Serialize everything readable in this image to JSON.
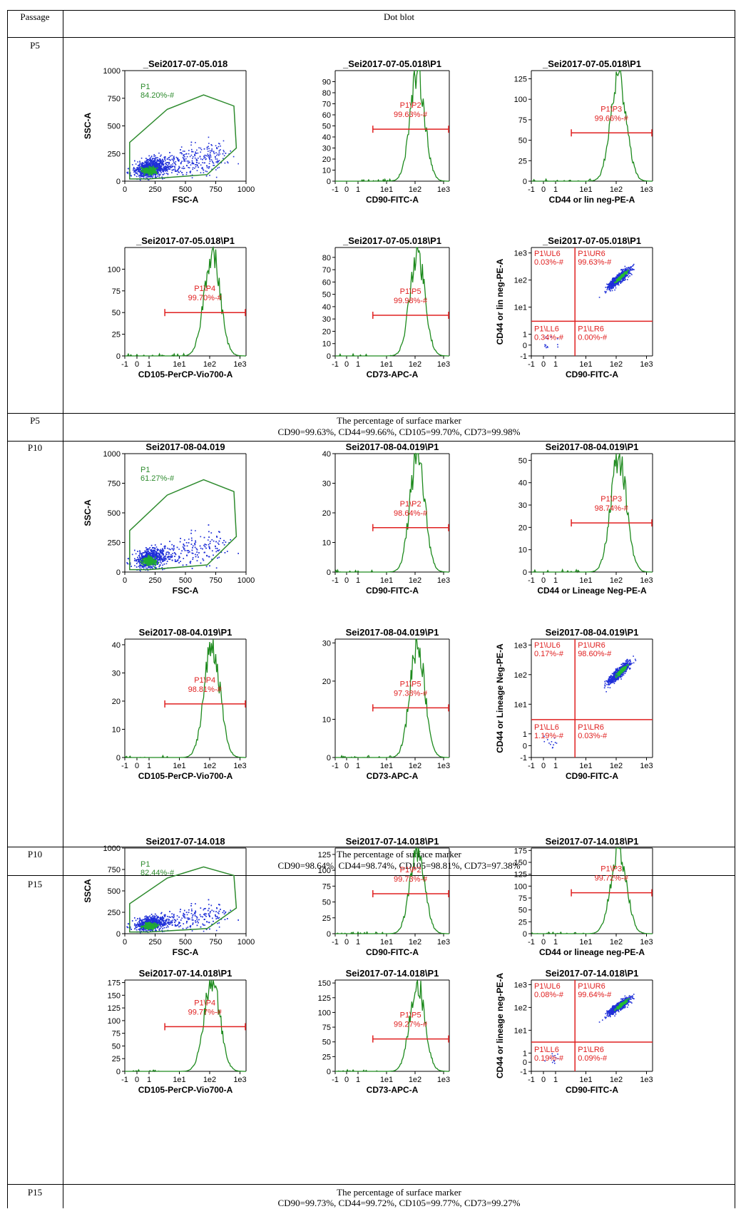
{
  "header": {
    "col1": "Passage",
    "col2": "Dot blot"
  },
  "colors": {
    "gate_green": "#2e8b2e",
    "gate_red": "#e02020",
    "dots_blue": "#1f2fd8",
    "hist_green": "#1d8a1d"
  },
  "sections": [
    {
      "passage": "P5",
      "summary_passage": "P5",
      "summary_title": "The percentage of surface marker",
      "summary_text": "CD90=99.63%, CD44=99.66%, CD105=99.70%, CD73=99.98%",
      "panels": [
        {
          "kind": "scatter",
          "title": "_Sei2017-07-05.018",
          "xlabel": "FSC-A",
          "ylabel": "SSC-A",
          "xticks": [
            "0",
            "250",
            "500",
            "750",
            "1000"
          ],
          "yticks": [
            "0",
            "250",
            "500",
            "750",
            "1000"
          ],
          "gate_name": "P1",
          "gate_value": "84.20%-#"
        },
        {
          "kind": "hist",
          "title": "_Sei2017-07-05.018\\P1",
          "xlabel": "CD90-FITC-A",
          "yticks": [
            "0",
            "10",
            "20",
            "30",
            "40",
            "50",
            "60",
            "70",
            "80",
            "90"
          ],
          "ymax": 100,
          "peak": 97,
          "gate_name": "P1\\P2",
          "gate_value": "99.63%-#",
          "gate_level": 47
        },
        {
          "kind": "hist",
          "title": "_Sei2017-07-05.018\\P1",
          "xlabel": "CD44 or lin neg-PE-A",
          "yticks": [
            "0",
            "25",
            "50",
            "75",
            "100",
            "125"
          ],
          "ymax": 135,
          "peak": 128,
          "gate_name": "P1\\P3",
          "gate_value": "99.66%-#",
          "gate_level": 59
        },
        {
          "kind": "hist",
          "title": "_Sei2017-07-05.018\\P1",
          "xlabel": "CD105-PerCP-Vio700-A",
          "yticks": [
            "0",
            "25",
            "50",
            "75",
            "100"
          ],
          "ymax": 125,
          "peak": 120,
          "gate_name": "P1\\P4",
          "gate_value": "99.70%-#",
          "gate_level": 50
        },
        {
          "kind": "hist",
          "title": "_Sei2017-07-05.018\\P1",
          "xlabel": "CD73-APC-A",
          "yticks": [
            "0",
            "10",
            "20",
            "30",
            "40",
            "50",
            "60",
            "70",
            "80"
          ],
          "ymax": 88,
          "peak": 85,
          "gate_name": "P1\\P5",
          "gate_value": "99.98%-#",
          "gate_level": 33
        },
        {
          "kind": "quad",
          "title": "_Sei2017-07-05.018\\P1",
          "xlabel": "CD90-FITC-A",
          "ylabel": "CD44 or lin neg-PE-A",
          "quads": {
            "ul_name": "P1\\UL6",
            "ul": "0.03%-#",
            "ur_name": "P1\\UR6",
            "ur": "99.63%-#",
            "ll_name": "P1\\LL6",
            "ll": "0.34%-#",
            "lr_name": "P1\\LR6",
            "lr": "0.00%-#"
          }
        }
      ]
    },
    {
      "passage": "P10",
      "summary_passage": "P10",
      "summary_title": "The percentage of surface marker",
      "summary_text": "CD90=98.64%, CD44=98.74%, CD105=98.81%, CD73=97.38%",
      "panels": [
        {
          "kind": "scatter",
          "title": "Sei2017-08-04.019",
          "xlabel": "FSC-A",
          "ylabel": "SSC-A",
          "xticks": [
            "0",
            "250",
            "500",
            "750",
            "1000"
          ],
          "yticks": [
            "0",
            "250",
            "500",
            "750",
            "1000"
          ],
          "gate_name": "P1",
          "gate_value": "61.27%-#"
        },
        {
          "kind": "hist",
          "title": "Sei2017-08-04.019\\P1",
          "xlabel": "CD90-FITC-A",
          "yticks": [
            "0",
            "10",
            "20",
            "30",
            "40"
          ],
          "ymax": 40,
          "peak": 39,
          "gate_name": "P1\\P2",
          "gate_value": "98.64%-#",
          "gate_level": 15
        },
        {
          "kind": "hist",
          "title": "Sei2017-08-04.019\\P1",
          "xlabel": "CD44 or Lineage Neg-PE-A",
          "yticks": [
            "0",
            "10",
            "20",
            "30",
            "40",
            "50"
          ],
          "ymax": 53,
          "peak": 52,
          "gate_name": "P1\\P3",
          "gate_value": "98.74%-#",
          "gate_level": 22
        },
        {
          "kind": "hist",
          "title": "Sei2017-08-04.019\\P1",
          "xlabel": "CD105-PerCP-Vio700-A",
          "yticks": [
            "0",
            "10",
            "20",
            "30",
            "40"
          ],
          "ymax": 42,
          "peak": 40,
          "gate_name": "P1\\P4",
          "gate_value": "98.81%-#",
          "gate_level": 19
        },
        {
          "kind": "hist",
          "title": "Sei2017-08-04.019\\P1",
          "xlabel": "CD73-APC-A",
          "yticks": [
            "0",
            "10",
            "20",
            "30"
          ],
          "ymax": 31,
          "peak": 30,
          "gate_name": "P1\\P5",
          "gate_value": "97.38%-#",
          "gate_level": 13
        },
        {
          "kind": "quad",
          "title": "Sei2017-08-04.019\\P1",
          "xlabel": "CD90-FITC-A",
          "ylabel": "CD44 or Lineage Neg-PE-A",
          "quads": {
            "ul_name": "P1\\UL6",
            "ul": "0.17%-#",
            "ur_name": "P1\\UR6",
            "ur": "98.60%-#",
            "ll_name": "P1\\LL6",
            "ll": "1.19%-#",
            "lr_name": "P1\\LR6",
            "lr": "0.03%-#"
          }
        }
      ]
    },
    {
      "passage": "P15",
      "summary_passage": "P15",
      "summary_title": "The percentage of surface marker",
      "summary_text": "CD90=99.73%, CD44=99.72%, CD105=99.77%, CD73=99.27%",
      "panels": [
        {
          "kind": "scatter",
          "title": "Sei2017-07-14.018",
          "xlabel": "FSC-A",
          "ylabel": "SSCA",
          "xticks": [
            "0",
            "250",
            "500",
            "750",
            "1000"
          ],
          "yticks": [
            "0",
            "250",
            "500",
            "750",
            "1000"
          ],
          "gate_name": "P1",
          "gate_value": "82.44%-#"
        },
        {
          "kind": "hist",
          "title": "Sei2017-07-14.018\\P1",
          "xlabel": "CD90-FITC-A",
          "yticks": [
            "0",
            "25",
            "50",
            "75",
            "100",
            "125"
          ],
          "ymax": 135,
          "peak": 132,
          "gate_name": "P1\\P2",
          "gate_value": "99.73%-#",
          "gate_level": 63
        },
        {
          "kind": "hist",
          "title": "Sei2017-07-14.018\\P1",
          "xlabel": "CD44 or lineage neg-PE-A",
          "yticks": [
            "0",
            "25",
            "50",
            "75",
            "100",
            "125",
            "150",
            "175"
          ],
          "ymax": 180,
          "peak": 176,
          "gate_name": "P1\\P3",
          "gate_value": "99.72%-#",
          "gate_level": 86
        },
        {
          "kind": "hist",
          "title": "Sei2017-07-14.018\\P1",
          "xlabel": "CD105-PerCP-Vio700-A",
          "yticks": [
            "0",
            "25",
            "50",
            "75",
            "100",
            "125",
            "150",
            "175"
          ],
          "ymax": 180,
          "peak": 178,
          "gate_name": "P1\\P4",
          "gate_value": "99.77%-#",
          "gate_level": 88
        },
        {
          "kind": "hist",
          "title": "Sei2017-07-14.018\\P1",
          "xlabel": "CD73-APC-A",
          "yticks": [
            "0",
            "25",
            "50",
            "75",
            "100",
            "125",
            "150"
          ],
          "ymax": 155,
          "peak": 150,
          "gate_name": "P1\\P5",
          "gate_value": "99.27%-#",
          "gate_level": 55
        },
        {
          "kind": "quad",
          "title": "Sei2017-07-14.018\\P1",
          "xlabel": "CD90-FITC-A",
          "ylabel": "CD44 or lineage neg-PE-A",
          "quads": {
            "ul_name": "P1\\UL6",
            "ul": "0.08%-#",
            "ur_name": "P1\\UR6",
            "ur": "99.64%-#",
            "ll_name": "P1\\LL6",
            "ll": "0.19%-#",
            "lr_name": "P1\\LR6",
            "lr": "0.09%-#"
          }
        }
      ]
    }
  ],
  "chart_data": [
    {
      "type": "table",
      "columns": [
        "Passage",
        "Dot blot"
      ],
      "rows": [
        [
          "P5",
          "CD90=99.63%, CD44=99.66%, CD105=99.70%, CD73=99.98%"
        ],
        [
          "P10",
          "CD90=98.64%, CD44=98.74%, CD105=98.81%, CD73=97.38%"
        ],
        [
          "P15",
          "CD90=99.73%, CD44=99.72%, CD105=99.77%, CD73=99.27%"
        ]
      ]
    },
    {
      "type": "bar",
      "categories": [
        "CD90",
        "CD44",
        "CD105",
        "CD73"
      ],
      "series": [
        {
          "name": "P5",
          "values": [
            99.63,
            99.66,
            99.7,
            99.98
          ]
        },
        {
          "name": "P10",
          "values": [
            98.64,
            98.74,
            98.81,
            97.38
          ]
        },
        {
          "name": "P15",
          "values": [
            99.73,
            99.72,
            99.77,
            99.27
          ]
        }
      ],
      "xlabel": "",
      "ylabel": ""
    }
  ],
  "hist_xticks": [
    "-1",
    "0",
    "1",
    "1e1",
    "1e2",
    "1e3"
  ],
  "quad_yticks": [
    "-1",
    "0",
    "1",
    "1e1",
    "1e2",
    "1e3"
  ]
}
